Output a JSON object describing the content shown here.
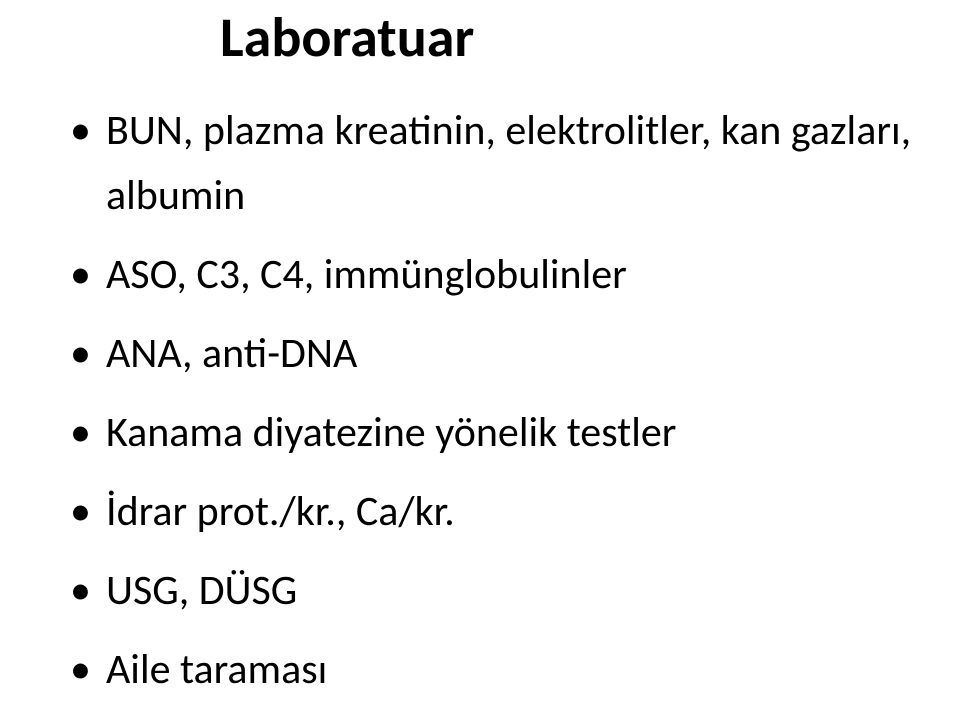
{
  "title": "Laboratuar",
  "bullets": [
    "BUN, plazma kreatinin, elektrolitler, kan gazları, albumin",
    "ASO, C3, C4, immünglobulinler",
    "ANA, anti-DNA",
    "Kanama diyatezine yönelik testler",
    "İdrar prot./kr., Ca/kr.",
    "USG, DÜSG",
    "Aile taraması"
  ],
  "style": {
    "background_color": "#ffffff",
    "text_color": "#000000",
    "title_fontsize": 56,
    "title_fontweight": 700,
    "bullet_fontsize": 42,
    "font_family": "Calibri"
  }
}
